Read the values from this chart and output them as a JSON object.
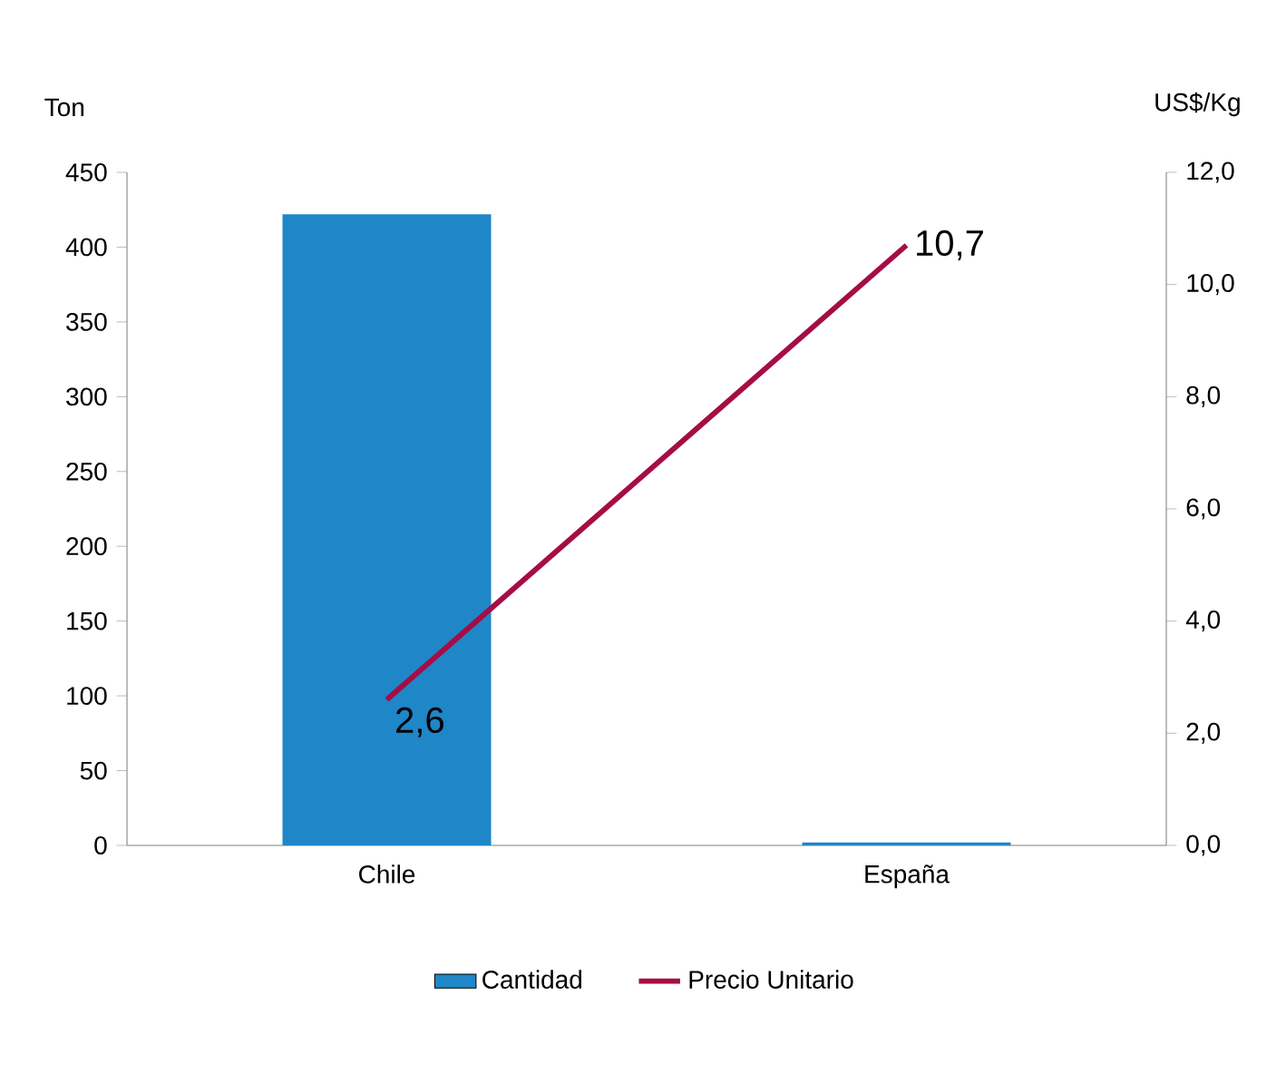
{
  "chart_data": {
    "type": "bar",
    "ylabel": "Ton",
    "y2label": "US$/Kg",
    "categories": [
      "Chile",
      "España"
    ],
    "series": [
      {
        "name": "Cantidad",
        "color": "#1f86c8",
        "values": [
          422,
          2
        ]
      },
      {
        "name": "Precio Unitario",
        "type": "line",
        "axis": "y2",
        "color": "#a50d45",
        "values": [
          2.6,
          10.7
        ],
        "value_labels": [
          "2,6",
          "10,7"
        ],
        "marker": "none"
      }
    ],
    "ylim": [
      0,
      450
    ],
    "yticks": [
      0,
      50,
      100,
      150,
      200,
      250,
      300,
      350,
      400,
      450
    ],
    "y2lim": [
      0,
      12
    ],
    "y2ticks": [
      {
        "value": 0,
        "label": "0,0"
      },
      {
        "value": 2,
        "label": "2,0"
      },
      {
        "value": 4,
        "label": "4,0"
      },
      {
        "value": 6,
        "label": "6,0"
      },
      {
        "value": 8,
        "label": "8,0"
      },
      {
        "value": 10,
        "label": "10,0"
      },
      {
        "value": 12,
        "label": "12,0"
      }
    ],
    "grid": false,
    "legend": "bottom"
  }
}
